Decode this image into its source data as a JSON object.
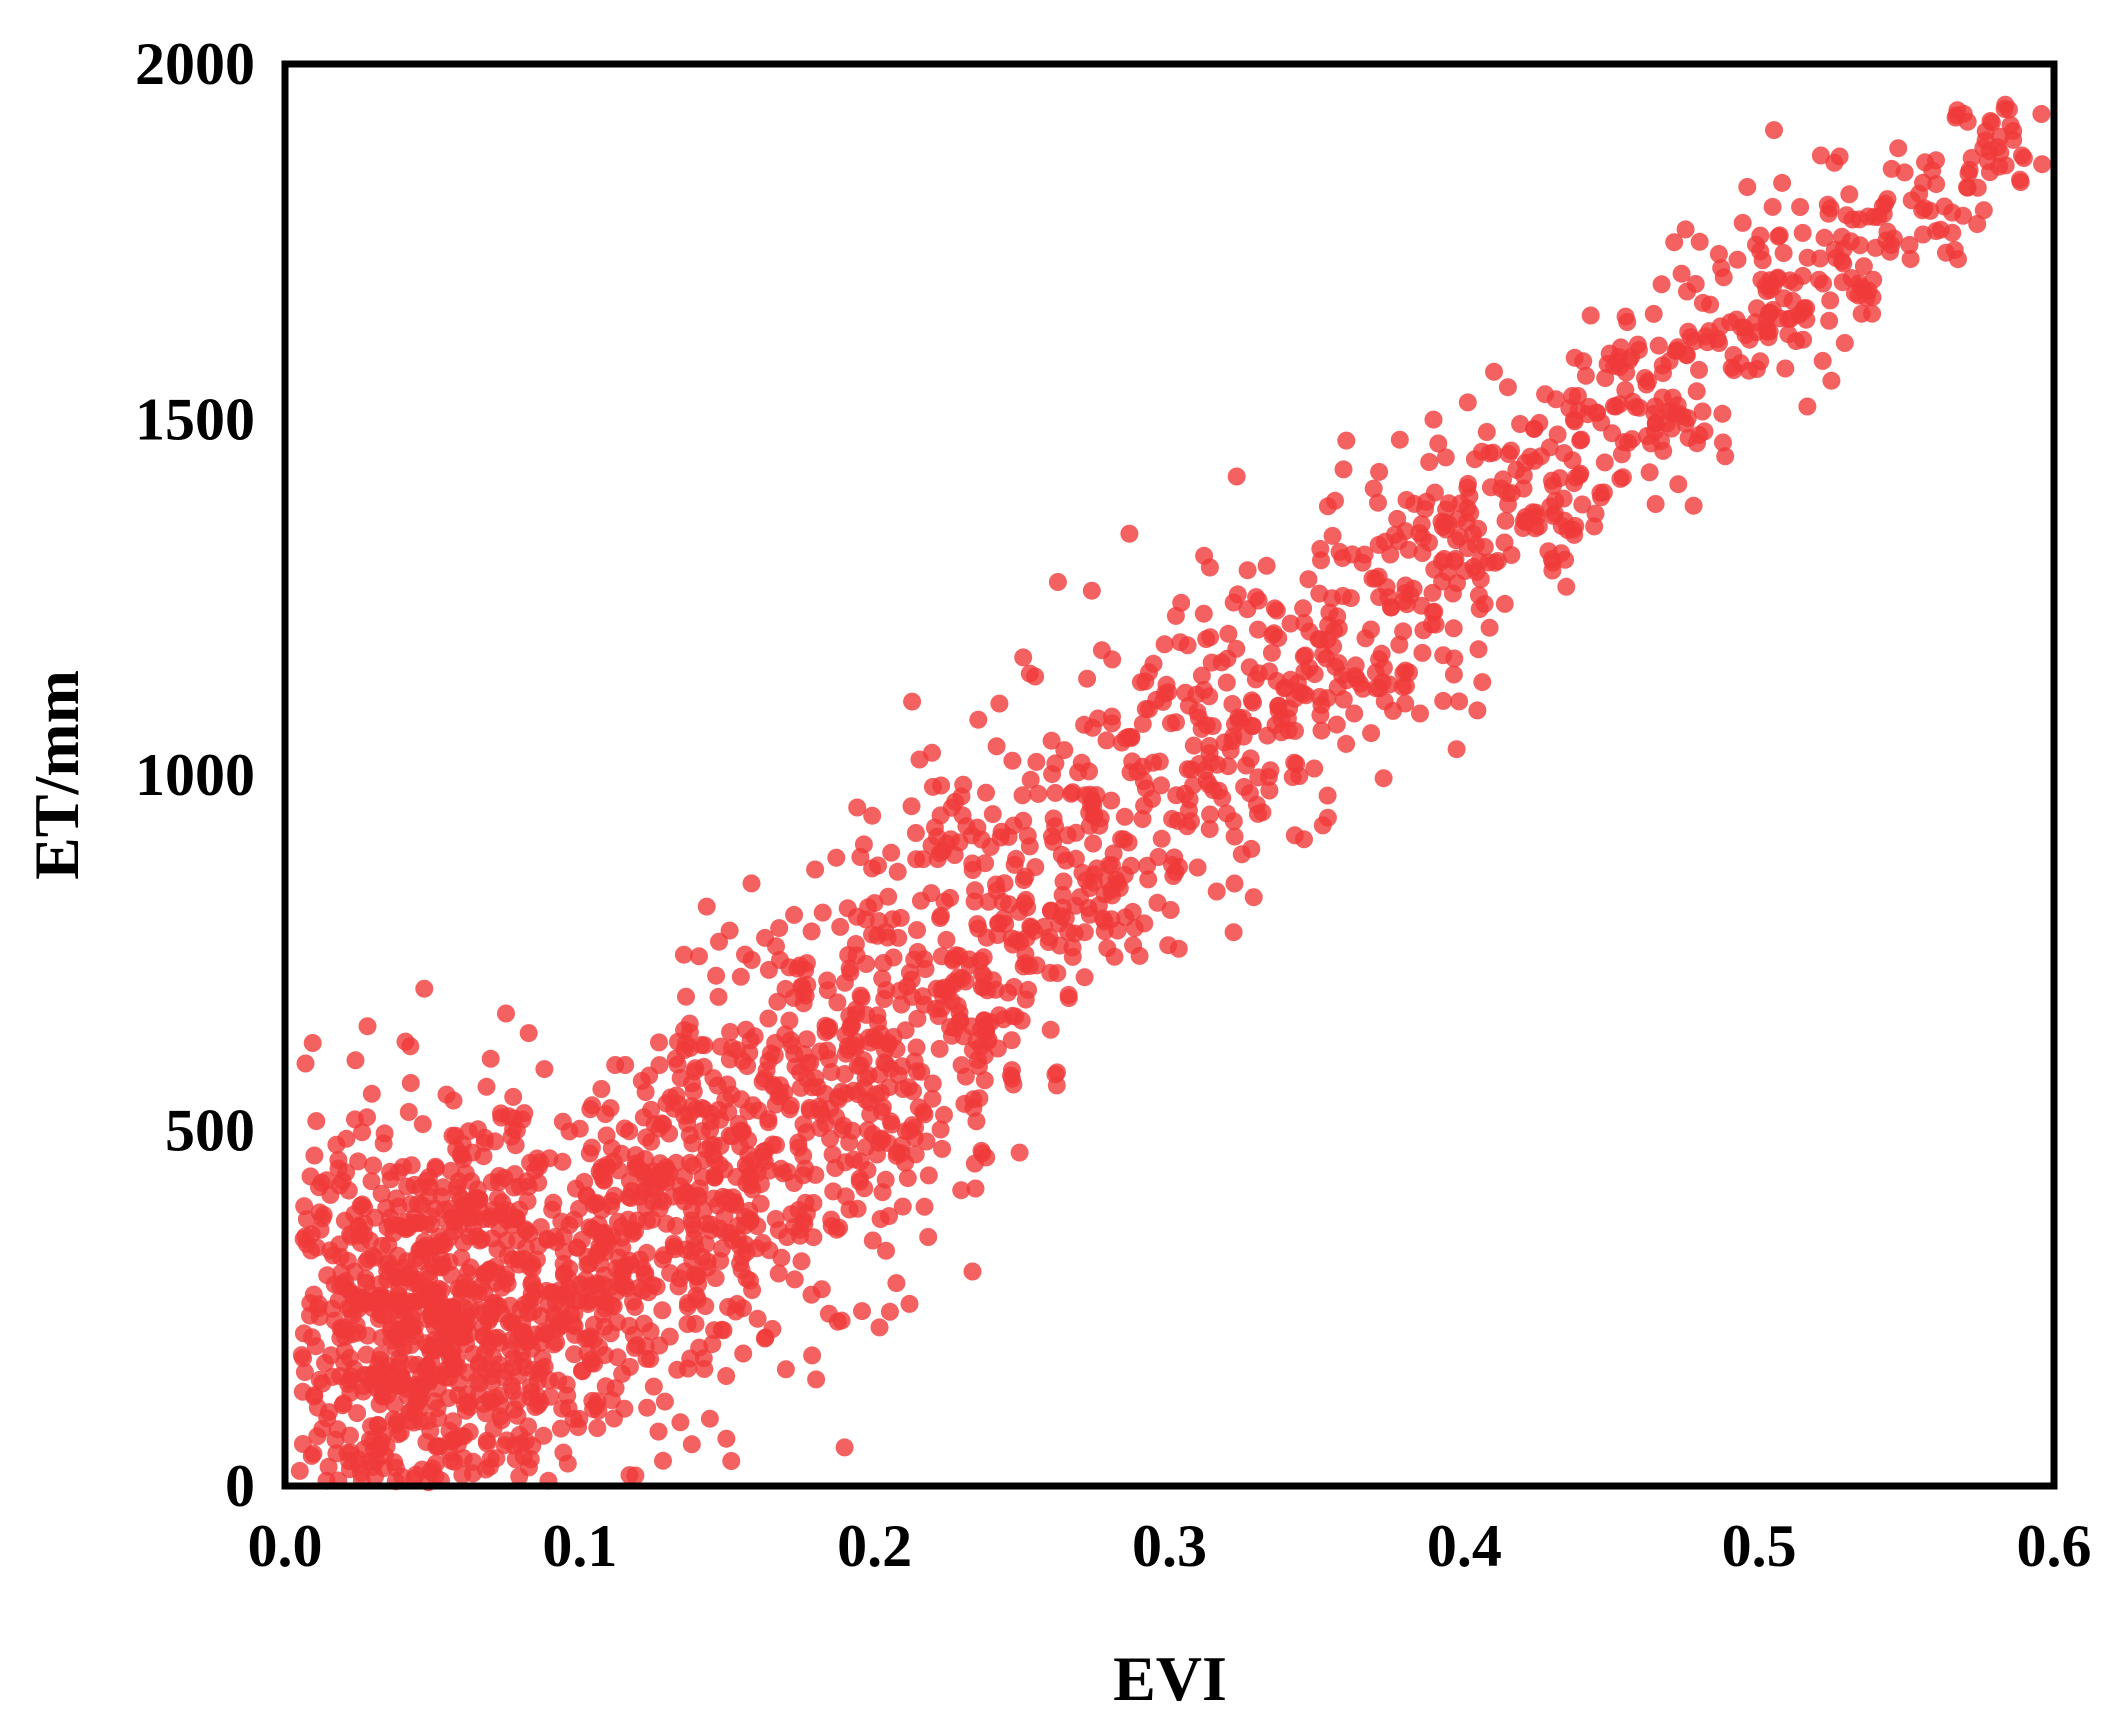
{
  "chart_data": {
    "type": "scatter",
    "title": "",
    "xlabel": "EVI",
    "ylabel": "ET/mm",
    "xlim": [
      0,
      0.6
    ],
    "ylim": [
      0,
      2000
    ],
    "x_ticks": [
      0,
      0.1,
      0.2,
      0.3,
      0.4,
      0.5,
      0.6
    ],
    "x_tick_labels": [
      "0.0",
      "0.1",
      "0.2",
      "0.3",
      "0.4",
      "0.5",
      "0.6"
    ],
    "y_ticks": [
      0,
      500,
      1000,
      1500,
      2000
    ],
    "y_tick_labels": [
      "0",
      "500",
      "1000",
      "1500",
      "2000"
    ],
    "grid": false,
    "legend": "none",
    "marker_color": "#f0393a",
    "marker_opacity": 0.8,
    "point_count": 2600,
    "trend": {
      "description": "approximately linear relationship, ET increases with EVI",
      "key_points": [
        {
          "x": 0.01,
          "y": 250
        },
        {
          "x": 0.05,
          "y": 250
        },
        {
          "x": 0.1,
          "y": 300
        },
        {
          "x": 0.15,
          "y": 450
        },
        {
          "x": 0.2,
          "y": 600
        },
        {
          "x": 0.25,
          "y": 800
        },
        {
          "x": 0.3,
          "y": 1000
        },
        {
          "x": 0.35,
          "y": 1150
        },
        {
          "x": 0.4,
          "y": 1330
        },
        {
          "x": 0.45,
          "y": 1500
        },
        {
          "x": 0.5,
          "y": 1650
        },
        {
          "x": 0.55,
          "y": 1800
        },
        {
          "x": 0.6,
          "y": 1920
        }
      ],
      "spread": [
        {
          "x": 0.0,
          "sd": 150
        },
        {
          "x": 0.1,
          "sd": 140
        },
        {
          "x": 0.2,
          "sd": 170
        },
        {
          "x": 0.3,
          "sd": 130
        },
        {
          "x": 0.4,
          "sd": 100
        },
        {
          "x": 0.5,
          "sd": 80
        },
        {
          "x": 0.6,
          "sd": 50
        }
      ],
      "x_density": [
        {
          "x": 0.0,
          "w": 1.0
        },
        {
          "x": 0.05,
          "w": 3.5
        },
        {
          "x": 0.1,
          "w": 1.6
        },
        {
          "x": 0.15,
          "w": 1.7
        },
        {
          "x": 0.2,
          "w": 1.5
        },
        {
          "x": 0.25,
          "w": 1.2
        },
        {
          "x": 0.3,
          "w": 0.9
        },
        {
          "x": 0.35,
          "w": 0.8
        },
        {
          "x": 0.4,
          "w": 0.75
        },
        {
          "x": 0.45,
          "w": 0.7
        },
        {
          "x": 0.5,
          "w": 0.6
        },
        {
          "x": 0.55,
          "w": 0.4
        },
        {
          "x": 0.6,
          "w": 0.3
        }
      ]
    }
  }
}
